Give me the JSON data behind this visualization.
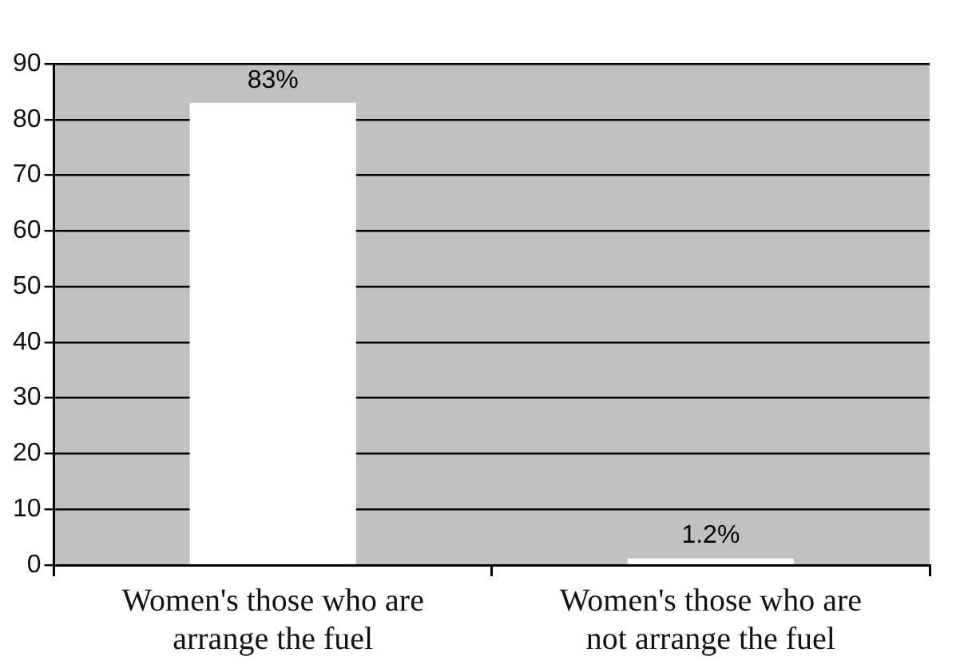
{
  "chart_data": {
    "type": "bar",
    "categories": [
      "Women's those who are arrange the fuel",
      "Women's those who are not arrange the fuel"
    ],
    "values": [
      83,
      1.2
    ],
    "color": "#ffffff",
    "value_labels": [
      "83%",
      "1.2%"
    ],
    "ylim": [
      0,
      90
    ],
    "yticks": [
      0,
      10,
      20,
      30,
      40,
      50,
      60,
      70,
      80,
      90
    ],
    "grid": "y",
    "legend": false
  }
}
